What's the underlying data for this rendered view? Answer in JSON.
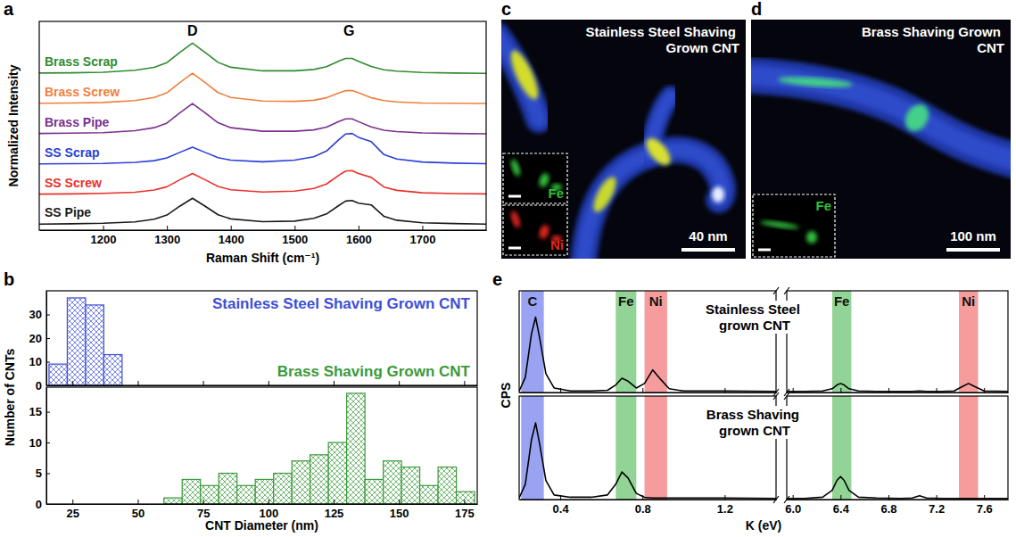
{
  "chart_data": [
    {
      "type": "line",
      "panel": "a",
      "xlabel": "Raman Shift (cm⁻¹)",
      "ylabel": "Normalized Intensity",
      "x": [
        1100,
        1150,
        1200,
        1250,
        1280,
        1300,
        1320,
        1340,
        1360,
        1380,
        1400,
        1450,
        1500,
        1530,
        1550,
        1570,
        1580,
        1590,
        1600,
        1620,
        1640,
        1660,
        1700,
        1750,
        1800
      ],
      "xlim": [
        1100,
        1800
      ],
      "xticks": [
        1200,
        1300,
        1400,
        1500,
        1600,
        1700
      ],
      "ylim": [
        -0.1,
        7.5
      ],
      "tick_labels": "x",
      "annotations": [
        {
          "text": "D",
          "x": 1340
        },
        {
          "text": "G",
          "x": 1585
        }
      ],
      "series": [
        {
          "name": "Brass Scrap",
          "color": "#2e8b2e",
          "values": [
            5.62,
            5.63,
            5.65,
            5.72,
            5.83,
            6.0,
            6.37,
            6.71,
            6.37,
            6.01,
            5.83,
            5.7,
            5.7,
            5.75,
            5.85,
            6.06,
            6.15,
            6.15,
            6.05,
            5.86,
            5.74,
            5.69,
            5.64,
            5.62,
            5.61
          ]
        },
        {
          "name": "Brass Screw",
          "color": "#f07f3c",
          "values": [
            4.52,
            4.53,
            4.55,
            4.62,
            4.73,
            4.9,
            5.27,
            5.61,
            5.27,
            4.91,
            4.73,
            4.6,
            4.59,
            4.63,
            4.72,
            4.9,
            4.98,
            4.98,
            4.9,
            4.72,
            4.62,
            4.57,
            4.53,
            4.52,
            4.51
          ]
        },
        {
          "name": "Brass Pipe",
          "color": "#7b2f8e",
          "values": [
            3.42,
            3.43,
            3.45,
            3.52,
            3.63,
            3.8,
            4.17,
            4.51,
            4.17,
            3.81,
            3.63,
            3.5,
            3.5,
            3.55,
            3.65,
            3.86,
            3.95,
            3.95,
            3.85,
            3.66,
            3.54,
            3.49,
            3.44,
            3.42,
            3.41
          ]
        },
        {
          "name": "SS Scrap",
          "color": "#2b3fd6",
          "values": [
            2.31,
            2.32,
            2.33,
            2.37,
            2.43,
            2.53,
            2.73,
            2.92,
            2.73,
            2.54,
            2.45,
            2.39,
            2.45,
            2.57,
            2.78,
            3.21,
            3.4,
            3.42,
            3.28,
            3.12,
            2.65,
            2.49,
            2.38,
            2.34,
            2.32
          ]
        },
        {
          "name": "SS Screw",
          "color": "#e8302a",
          "values": [
            1.21,
            1.22,
            1.24,
            1.28,
            1.36,
            1.48,
            1.73,
            1.96,
            1.73,
            1.49,
            1.37,
            1.29,
            1.32,
            1.42,
            1.58,
            1.91,
            2.05,
            2.07,
            1.96,
            1.82,
            1.47,
            1.35,
            1.26,
            1.23,
            1.22
          ]
        },
        {
          "name": "SS Pipe",
          "color": "#1a1a1a",
          "values": [
            0.12,
            0.13,
            0.15,
            0.2,
            0.3,
            0.45,
            0.77,
            1.06,
            0.77,
            0.46,
            0.31,
            0.21,
            0.23,
            0.33,
            0.49,
            0.81,
            0.96,
            0.98,
            0.88,
            0.82,
            0.4,
            0.26,
            0.17,
            0.14,
            0.12
          ]
        }
      ]
    },
    {
      "type": "histogram",
      "panel": "b",
      "title": "Stainless Steel Shaving Grown CNT",
      "ylabel": "Number of CNTs",
      "bins": [
        16,
        23,
        30,
        37,
        44
      ],
      "values": [
        9,
        37,
        34,
        13
      ],
      "color": "#3d4fd6",
      "xlim": [
        15,
        180
      ],
      "xticks": [
        25,
        50,
        75,
        100,
        125,
        150,
        175
      ],
      "ylim": [
        0,
        40
      ],
      "yticks": [
        0,
        10,
        20,
        30
      ],
      "tick_labels": "y"
    },
    {
      "type": "histogram",
      "title": "Brass Shaving Grown CNT",
      "xlabel": "CNT Diameter (nm)",
      "bins": [
        60,
        67,
        74,
        81,
        88,
        95,
        102,
        109,
        116,
        123,
        130,
        137,
        144,
        151,
        158,
        165,
        172,
        179
      ],
      "values": [
        1,
        4,
        3,
        5,
        3,
        4,
        5,
        7,
        8,
        10,
        18,
        4,
        7,
        6,
        3,
        6,
        2
      ],
      "color": "#3a9a3a",
      "xlim": [
        15,
        180
      ],
      "xticks": [
        25,
        50,
        75,
        100,
        125,
        150,
        175
      ],
      "ylim": [
        0,
        19
      ],
      "yticks": [
        0,
        5,
        10,
        15
      ]
    },
    {
      "type": "image",
      "panel": "c",
      "title": "Stainless Steel Shaving Grown CNT",
      "scale_bar": "40 nm",
      "insets": [
        {
          "label": "Fe",
          "color": "#2fbf3a"
        },
        {
          "label": "Ni",
          "color": "#e0261f"
        }
      ]
    },
    {
      "type": "image",
      "panel": "d",
      "title": "Brass Shaving Grown CNT",
      "scale_bar": "100 nm",
      "insets": [
        {
          "label": "Fe",
          "color": "#2fbf3a"
        }
      ]
    },
    {
      "type": "line",
      "panel": "e",
      "title": "Stainless Steel grown CNT",
      "ylabel": "CPS",
      "x": [
        0.2,
        0.23,
        0.26,
        0.28,
        0.3,
        0.33,
        0.37,
        0.45,
        0.55,
        0.63,
        0.67,
        0.7,
        0.73,
        0.77,
        0.81,
        0.85,
        0.89,
        0.93,
        1.0,
        1.2,
        1.45
      ],
      "xlim": [
        0.2,
        1.45
      ],
      "xticks": [
        0.4,
        0.8,
        1.2
      ],
      "ylim": [
        0,
        1.35
      ],
      "tick_labels": false,
      "bands": [
        {
          "label": "C",
          "from": 0.21,
          "to": 0.32,
          "color": "#5565ea"
        },
        {
          "label": "Fe",
          "from": 0.67,
          "to": 0.77,
          "color": "#49b84f"
        },
        {
          "label": "Ni",
          "from": 0.81,
          "to": 0.92,
          "color": "#f05a5c"
        }
      ],
      "series": [
        {
          "color": "#000000",
          "values": [
            0.02,
            0.2,
            0.78,
            1.0,
            0.72,
            0.25,
            0.06,
            0.02,
            0.02,
            0.03,
            0.1,
            0.19,
            0.15,
            0.06,
            0.12,
            0.3,
            0.17,
            0.05,
            0.02,
            0.02,
            0.015
          ]
        }
      ]
    },
    {
      "type": "line",
      "x": [
        5.95,
        6.1,
        6.25,
        6.33,
        6.37,
        6.4,
        6.43,
        6.47,
        6.55,
        6.7,
        6.9,
        7.0,
        7.06,
        7.12,
        7.25,
        7.35,
        7.42,
        7.47,
        7.52,
        7.6,
        7.8
      ],
      "xlim": [
        5.95,
        7.8
      ],
      "xticks": [
        {
          "value": 6,
          "label": "6.0"
        },
        6.4,
        6.8,
        7.2,
        7.6
      ],
      "ylim": [
        0,
        1.35
      ],
      "tick_labels": false,
      "bands": [
        {
          "label": "Fe",
          "from": 6.33,
          "to": 6.49,
          "color": "#49b84f"
        },
        {
          "label": "Ni",
          "from": 7.39,
          "to": 7.55,
          "color": "#f05a5c"
        }
      ],
      "series": [
        {
          "color": "#000000",
          "values": [
            0.015,
            0.015,
            0.02,
            0.05,
            0.1,
            0.12,
            0.1,
            0.05,
            0.02,
            0.015,
            0.015,
            0.015,
            0.02,
            0.015,
            0.015,
            0.02,
            0.08,
            0.12,
            0.08,
            0.02,
            0.015
          ]
        }
      ]
    },
    {
      "type": "line",
      "title": "Brass Shaving grown CNT",
      "xlabel": "K (eV)",
      "x": [
        0.2,
        0.23,
        0.26,
        0.28,
        0.3,
        0.33,
        0.37,
        0.45,
        0.55,
        0.63,
        0.67,
        0.7,
        0.73,
        0.77,
        0.81,
        0.85,
        0.89,
        0.93,
        1.0,
        1.2,
        1.45
      ],
      "xlim": [
        0.2,
        1.45
      ],
      "xticks": [
        0.4,
        0.8,
        1.2
      ],
      "ylim": [
        0,
        1.35
      ],
      "tick_labels": "x",
      "bands": [
        {
          "from": 0.21,
          "to": 0.32,
          "color": "#5565ea"
        },
        {
          "from": 0.67,
          "to": 0.77,
          "color": "#49b84f"
        },
        {
          "from": 0.81,
          "to": 0.92,
          "color": "#f05a5c"
        }
      ],
      "series": [
        {
          "color": "#000000",
          "values": [
            0.02,
            0.2,
            0.78,
            1.0,
            0.72,
            0.25,
            0.06,
            0.03,
            0.03,
            0.06,
            0.2,
            0.36,
            0.28,
            0.08,
            0.03,
            0.02,
            0.02,
            0.02,
            0.02,
            0.02,
            0.015
          ]
        }
      ]
    },
    {
      "type": "line",
      "x": [
        5.95,
        6.1,
        6.25,
        6.33,
        6.37,
        6.4,
        6.43,
        6.47,
        6.55,
        6.7,
        6.9,
        7.0,
        7.06,
        7.12,
        7.25,
        7.35,
        7.42,
        7.47,
        7.52,
        7.6,
        7.8
      ],
      "xlim": [
        5.95,
        7.8
      ],
      "xticks": [
        {
          "value": 6,
          "label": "6.0"
        },
        6.4,
        6.8,
        7.2,
        7.6
      ],
      "ylim": [
        0,
        1.35
      ],
      "tick_labels": "x",
      "bands": [
        {
          "from": 6.33,
          "to": 6.49,
          "color": "#49b84f"
        },
        {
          "from": 7.39,
          "to": 7.55,
          "color": "#f05a5c"
        }
      ],
      "series": [
        {
          "color": "#000000",
          "values": [
            0.015,
            0.015,
            0.03,
            0.12,
            0.25,
            0.3,
            0.25,
            0.12,
            0.03,
            0.02,
            0.015,
            0.02,
            0.05,
            0.02,
            0.015,
            0.015,
            0.015,
            0.015,
            0.015,
            0.015,
            0.015
          ]
        }
      ]
    }
  ]
}
